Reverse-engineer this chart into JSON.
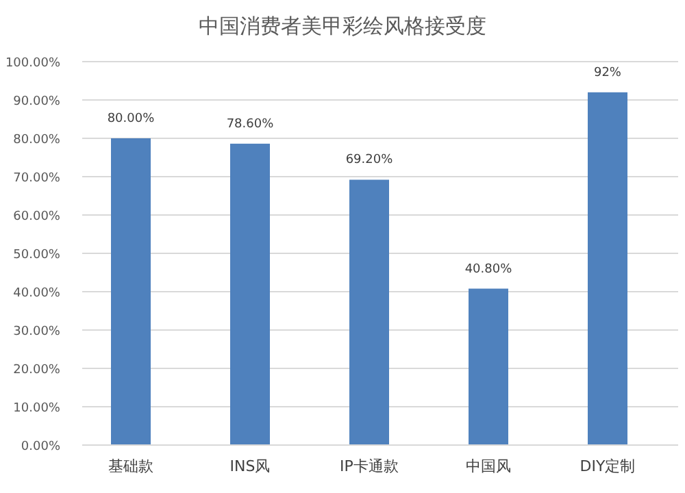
{
  "chart_data": {
    "type": "bar",
    "title": "中国消费者美甲彩绘风格接受度",
    "categories": [
      "基础款",
      "INS风",
      "IP卡通款",
      "中国风",
      "DIY定制"
    ],
    "values": [
      80,
      78.6,
      69.2,
      40.8,
      92
    ],
    "value_labels": [
      "80.00%",
      "78.60%",
      "69.20%",
      "40.80%",
      "92%"
    ],
    "color": "#4f81bd",
    "ylim": [
      0,
      100
    ],
    "yticks": [
      {
        "value": 0,
        "label": "0.00%"
      },
      {
        "value": 10,
        "label": "10.00%"
      },
      {
        "value": 20,
        "label": "20.00%"
      },
      {
        "value": 30,
        "label": "30.00%"
      },
      {
        "value": 40,
        "label": "40.00%"
      },
      {
        "value": 50,
        "label": "50.00%"
      },
      {
        "value": 60,
        "label": "60.00%"
      },
      {
        "value": 70,
        "label": "70.00%"
      },
      {
        "value": 80,
        "label": "80.00%"
      },
      {
        "value": 90,
        "label": "90.00%"
      },
      {
        "value": 100,
        "label": "100.00%"
      }
    ],
    "grid": "y"
  }
}
